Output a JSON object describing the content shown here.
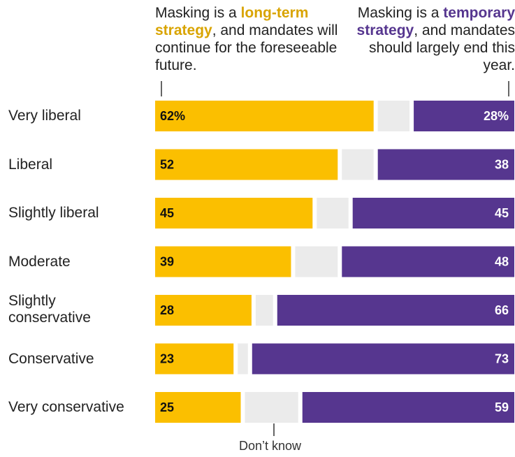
{
  "legend": {
    "left_pre": "Masking is a ",
    "left_hl": "long-term strategy",
    "left_post": ", and mandates will continue for the foreseeable future.",
    "right_pre": "Masking is a ",
    "right_hl": "temporary strategy",
    "right_post": ", and mandates should largely end this year."
  },
  "dont_know_label": "Don’t know",
  "colors": {
    "long_term": "#FBBF00",
    "temporary": "#56368F",
    "dont_know": "#EBEBEB",
    "long_term_text": "#D9A400"
  },
  "chart_data": {
    "type": "bar",
    "orientation": "horizontal-stacked",
    "categories": [
      "Very liberal",
      "Liberal",
      "Slightly liberal",
      "Moderate",
      "Slightly conservative",
      "Conservative",
      "Very conservative"
    ],
    "series": [
      {
        "values": [
          62,
          52,
          45,
          39,
          28,
          23,
          25
        ],
        "labels": [
          "62%",
          "52",
          "45",
          "39",
          "28",
          "23",
          "25"
        ]
      },
      {
        "values": [
          10,
          10,
          10,
          13,
          6,
          4,
          16
        ]
      },
      {
        "values": [
          28,
          38,
          45,
          48,
          66,
          73,
          59
        ],
        "labels": [
          "28%",
          "38",
          "45",
          "48",
          "66",
          "73",
          "59"
        ]
      }
    ]
  }
}
